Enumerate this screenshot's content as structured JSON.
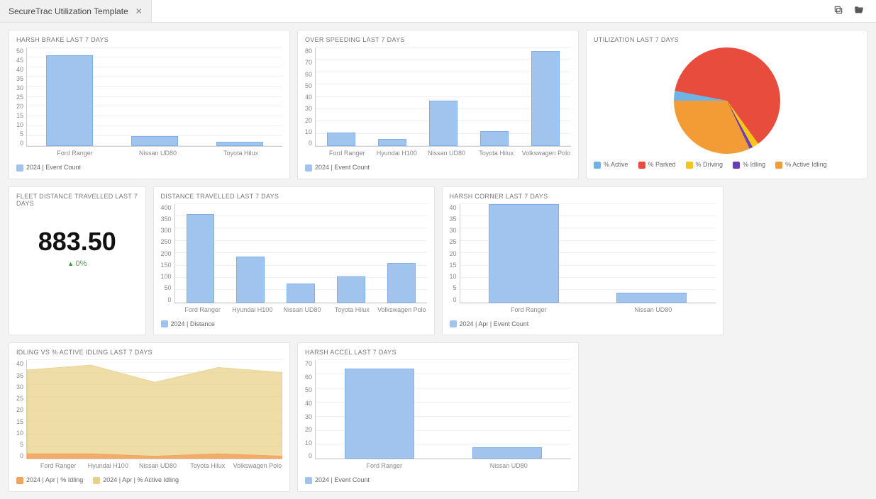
{
  "tab": {
    "title": "SecureTrac Utilization Template"
  },
  "panels": {
    "harsh_brake": {
      "title": "HARSH BRAKE LAST 7 DAYS",
      "type": "bar",
      "categories": [
        "Ford Ranger",
        "Nissan UD80",
        "Toyota Hilux"
      ],
      "values": [
        46,
        5,
        2
      ],
      "bar_color": "#a0c4ee",
      "bar_border": "#7fb0e8",
      "ylim": [
        0,
        50
      ],
      "ytick_step": 5,
      "yticks": [
        "50",
        "45",
        "40",
        "35",
        "30",
        "25",
        "20",
        "15",
        "10",
        "5",
        "0"
      ],
      "legend": "2024 | Event Count",
      "legend_color": "#a0c4ee"
    },
    "over_speed": {
      "title": "OVER SPEEDING LAST 7 DAYS",
      "type": "bar",
      "categories": [
        "Ford Ranger",
        "Hyundai H100",
        "Nissan UD80",
        "Toyota Hilux",
        "Volkswagen Polo"
      ],
      "values": [
        11,
        6,
        37,
        12,
        77
      ],
      "bar_color": "#a0c4ee",
      "bar_border": "#7fb0e8",
      "ylim": [
        0,
        80
      ],
      "ytick_step": 10,
      "yticks": [
        "80",
        "70",
        "60",
        "50",
        "40",
        "30",
        "20",
        "10",
        "0"
      ],
      "legend": "2024 | Event Count",
      "legend_color": "#a0c4ee"
    },
    "utilization": {
      "title": "UTILIZATION LAST 7 DAYS",
      "type": "pie",
      "slices": [
        {
          "label": "% Active",
          "value": 3,
          "color": "#6fb2e6"
        },
        {
          "label": "% Parked",
          "value": 62,
          "color": "#e74c3c"
        },
        {
          "label": "% Driving",
          "value": 2,
          "color": "#f5c518"
        },
        {
          "label": "% Idling",
          "value": 1,
          "color": "#6a3fb5"
        },
        {
          "label": "% Active Idling",
          "value": 32,
          "color": "#f39c35"
        }
      ]
    },
    "fleet_distance": {
      "title": "FLEET DISTANCE TRAVELLED LAST 7 DAYS",
      "type": "kpi",
      "value": "883.50",
      "delta": "0%"
    },
    "distance_travelled": {
      "title": "DISTANCE TRAVELLED LAST 7 DAYS",
      "type": "bar",
      "categories": [
        "Ford Ranger",
        "Hyundai H100",
        "Nissan UD80",
        "Toyota Hilux",
        "Volkswagen Polo"
      ],
      "values": [
        358,
        185,
        78,
        105,
        160
      ],
      "bar_color": "#a0c4ee",
      "bar_border": "#7fb0e8",
      "ylim": [
        0,
        400
      ],
      "ytick_step": 50,
      "yticks": [
        "400",
        "350",
        "300",
        "250",
        "200",
        "150",
        "100",
        "50",
        "0"
      ],
      "legend": "2024 | Distance",
      "legend_color": "#a0c4ee"
    },
    "harsh_corner": {
      "title": "HARSH CORNER LAST 7 DAYS",
      "type": "bar",
      "categories": [
        "Ford Ranger",
        "Nissan UD80"
      ],
      "values": [
        40,
        4
      ],
      "bar_color": "#a0c4ee",
      "bar_border": "#7fb0e8",
      "ylim": [
        0,
        40
      ],
      "ytick_step": 5,
      "yticks": [
        "40",
        "35",
        "30",
        "25",
        "20",
        "15",
        "10",
        "5",
        "0"
      ],
      "legend": "2024 | Apr | Event Count",
      "legend_color": "#a0c4ee"
    },
    "idling": {
      "title": "IDLING VS % ACTIVE IDLING LAST 7 DAYS",
      "type": "area",
      "categories": [
        "Ford Ranger",
        "Hyundai H100",
        "Nissan UD80",
        "Toyota Hilux",
        "Volkswagen Polo"
      ],
      "series": [
        {
          "label": "2024 | Apr | % Idling",
          "color": "#f3a35a",
          "fill": "#f3a35a",
          "opacity": 0.85,
          "values": [
            2,
            2,
            1,
            2,
            1
          ]
        },
        {
          "label": "2024 | Apr | % Active Idling",
          "color": "#e8d18a",
          "fill": "#e8d18a",
          "opacity": 0.75,
          "values": [
            36,
            38,
            31,
            37,
            35
          ]
        }
      ],
      "ylim": [
        0,
        40
      ],
      "ytick_step": 5,
      "yticks": [
        "40",
        "35",
        "30",
        "25",
        "20",
        "15",
        "10",
        "5",
        "0"
      ]
    },
    "harsh_accel": {
      "title": "HARSH ACCEL LAST 7 DAYS",
      "type": "bar",
      "categories": [
        "Ford Ranger",
        "Nissan UD80"
      ],
      "values": [
        64,
        8
      ],
      "bar_color": "#a0c4ee",
      "bar_border": "#7fb0e8",
      "ylim": [
        0,
        70
      ],
      "ytick_step": 10,
      "yticks": [
        "70",
        "60",
        "50",
        "40",
        "30",
        "20",
        "10",
        "0"
      ],
      "legend": "2024 | Event Count",
      "legend_color": "#a0c4ee"
    }
  },
  "colors": {
    "panel_bg": "#ffffff",
    "page_bg": "#f3f3f3",
    "grid": "#f0f0f0",
    "axis": "#cccccc",
    "tick_text": "#888888"
  }
}
